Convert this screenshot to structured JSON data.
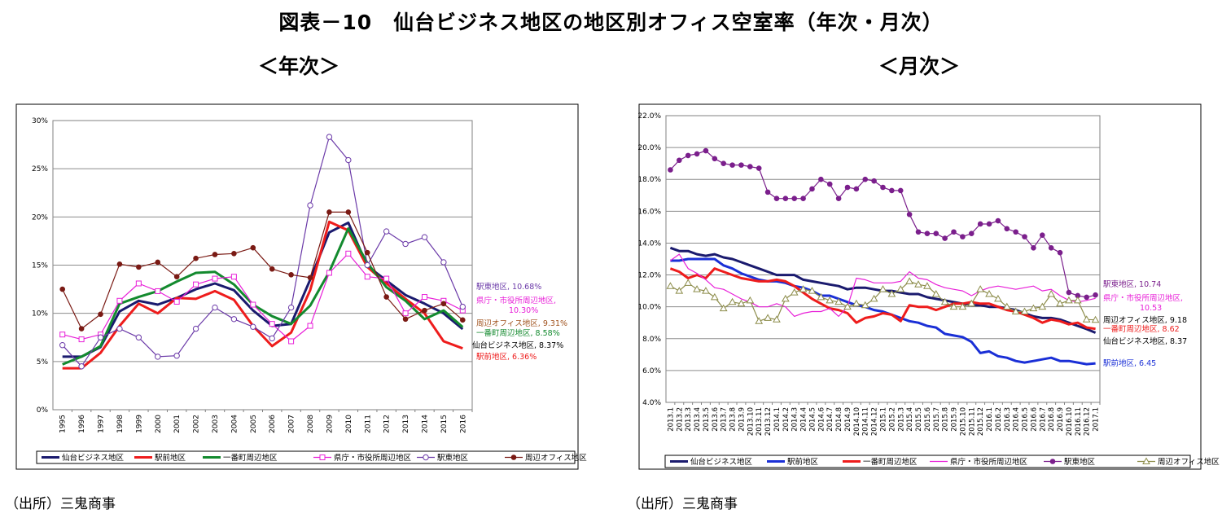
{
  "page": {
    "title": "図表－10　仙台ビジネス地区の地区別オフィス空室率（年次・月次）",
    "subtitle_left": "＜年次＞",
    "subtitle_right": "＜月次＞",
    "source_left": "（出所）三鬼商事",
    "source_right": "（出所）三鬼商事"
  },
  "chart_data": [
    {
      "type": "line",
      "x": [
        "1995",
        "1996",
        "1997",
        "1998",
        "1999",
        "2000",
        "2001",
        "2002",
        "2003",
        "2004",
        "2005",
        "2006",
        "2007",
        "2008",
        "2009",
        "2010",
        "2011",
        "2012",
        "2013",
        "2014",
        "2015",
        "2016"
      ],
      "ylim": [
        0,
        30
      ],
      "yticks": [
        0,
        5,
        10,
        15,
        20,
        25,
        30
      ],
      "ytick_labels": [
        "0%",
        "5%",
        "10%",
        "15%",
        "20%",
        "25%",
        "30%"
      ],
      "grid": true,
      "legend_position": "bottom",
      "series": [
        {
          "name": "仙台ビジネス地区",
          "color": "#1a1a6e",
          "marker": "none",
          "width": 3,
          "values": [
            5.5,
            5.5,
            6.5,
            10.2,
            11.3,
            10.9,
            11.6,
            12.5,
            13.1,
            12.4,
            10.3,
            8.7,
            8.9,
            13.5,
            18.4,
            19.4,
            14.9,
            13.4,
            11.9,
            11.0,
            10.0,
            8.37
          ],
          "end_label": "仙台ビジネス地区, 8.37%",
          "end_label_color": "#000000"
        },
        {
          "name": "駅前地区",
          "color": "#ee1c1c",
          "marker": "none",
          "width": 3,
          "values": [
            4.3,
            4.3,
            5.9,
            8.7,
            11.0,
            10.0,
            11.6,
            11.5,
            12.3,
            11.4,
            8.7,
            6.6,
            8.0,
            12.4,
            19.5,
            18.6,
            14.8,
            13.1,
            11.5,
            10.0,
            7.1,
            6.36
          ],
          "end_label": "駅前地区, 6.36%",
          "end_label_color": "#ee1c1c"
        },
        {
          "name": "一番町周辺地区",
          "color": "#138a2e",
          "marker": "none",
          "width": 3,
          "values": [
            4.7,
            5.5,
            6.6,
            11.0,
            11.7,
            12.3,
            13.3,
            14.2,
            14.3,
            13.0,
            10.9,
            9.7,
            8.9,
            10.8,
            14.3,
            18.8,
            15.2,
            12.7,
            11.3,
            9.4,
            10.3,
            8.58
          ],
          "end_label": "一番町周辺地区, 8.58%",
          "end_label_color": "#138a2e"
        },
        {
          "name": "県庁・市役所周辺地区",
          "color": "#e81fd8",
          "marker": "square",
          "width": 1.2,
          "values": [
            7.8,
            7.3,
            7.8,
            11.3,
            13.1,
            12.3,
            11.2,
            13.0,
            13.6,
            13.8,
            10.9,
            8.9,
            7.1,
            8.7,
            14.2,
            16.2,
            13.8,
            13.6,
            10.0,
            11.7,
            11.3,
            10.3
          ],
          "end_label": "県庁・市役所周辺地区, 10.30%",
          "end_label_color": "#e81fd8"
        },
        {
          "name": "駅東地区",
          "color": "#6b3aa8",
          "marker": "circle",
          "width": 1.2,
          "values": [
            6.7,
            4.5,
            7.5,
            8.4,
            7.5,
            5.5,
            5.6,
            8.4,
            10.6,
            9.4,
            8.6,
            7.4,
            10.6,
            21.2,
            28.3,
            25.9,
            15.0,
            18.5,
            17.2,
            17.9,
            15.3,
            10.68
          ],
          "end_label": "駅東地区, 10.68%",
          "end_label_color": "#6b3aa8"
        },
        {
          "name": "周辺オフィス地区",
          "color": "#7a1a14",
          "marker": "dot",
          "width": 1.2,
          "values": [
            12.5,
            8.4,
            9.9,
            15.1,
            14.8,
            15.3,
            13.8,
            15.7,
            16.1,
            16.2,
            16.8,
            14.6,
            14.0,
            13.7,
            20.5,
            20.5,
            16.3,
            11.7,
            9.4,
            10.3,
            11.0,
            9.31
          ],
          "end_label": "周辺オフィス地区, 9.31%",
          "end_label_color": "#a0521d"
        }
      ]
    },
    {
      "type": "line",
      "x": [
        "2013.1",
        "2013.2",
        "2013.3",
        "2013.4",
        "2013.5",
        "2013.6",
        "2013.7",
        "2013.8",
        "2013.9",
        "2013.10",
        "2013.11",
        "2013.12",
        "2014.1",
        "2014.2",
        "2014.3",
        "2014.4",
        "2014.5",
        "2014.6",
        "2014.7",
        "2014.8",
        "2014.9",
        "2014.10",
        "2014.11",
        "2014.12",
        "2015.1",
        "2015.2",
        "2015.3",
        "2015.4",
        "2015.5",
        "2015.6",
        "2015.7",
        "2015.8",
        "2015.9",
        "2015.10",
        "2015.11",
        "2015.12",
        "2016.1",
        "2016.2",
        "2016.3",
        "2016.4",
        "2016.5",
        "2016.6",
        "2016.7",
        "2016.8",
        "2016.9",
        "2016.10",
        "2016.11",
        "2016.12",
        "2017.1"
      ],
      "ylim": [
        4,
        22
      ],
      "yticks": [
        4,
        6,
        8,
        10,
        12,
        14,
        16,
        18,
        20,
        22
      ],
      "ytick_labels": [
        "4.0%",
        "6.0%",
        "8.0%",
        "10.0%",
        "12.0%",
        "14.0%",
        "16.0%",
        "18.0%",
        "20.0%",
        "22.0%"
      ],
      "grid": true,
      "legend_position": "bottom",
      "series": [
        {
          "name": "仙台ビジネス地区",
          "color": "#1a1a6e",
          "marker": "none",
          "width": 3,
          "values": [
            13.7,
            13.5,
            13.5,
            13.3,
            13.2,
            13.3,
            13.1,
            13.0,
            12.8,
            12.6,
            12.4,
            12.2,
            12.0,
            12.0,
            12.0,
            11.7,
            11.6,
            11.5,
            11.4,
            11.3,
            11.1,
            11.2,
            11.2,
            11.1,
            11.0,
            11.0,
            10.9,
            10.8,
            10.8,
            10.6,
            10.5,
            10.4,
            10.3,
            10.2,
            10.1,
            10.1,
            10.0,
            10.0,
            9.9,
            9.8,
            9.6,
            9.4,
            9.3,
            9.3,
            9.2,
            9.0,
            8.8,
            8.6,
            8.37
          ],
          "end_label": "仙台ビジネス地区, 8.37",
          "end_label_color": "#000000"
        },
        {
          "name": "駅前地区",
          "color": "#1a2fd6",
          "marker": "none",
          "width": 3,
          "values": [
            12.9,
            12.9,
            13.0,
            13.0,
            13.0,
            13.0,
            12.6,
            12.4,
            12.1,
            11.9,
            11.7,
            11.6,
            11.6,
            11.5,
            11.3,
            11.2,
            11.0,
            10.7,
            10.7,
            10.5,
            10.3,
            10.1,
            10.0,
            9.8,
            9.7,
            9.5,
            9.3,
            9.1,
            9.0,
            8.8,
            8.7,
            8.3,
            8.2,
            8.1,
            7.8,
            7.1,
            7.2,
            6.9,
            6.8,
            6.6,
            6.5,
            6.6,
            6.7,
            6.8,
            6.6,
            6.6,
            6.5,
            6.4,
            6.45
          ],
          "end_label": "駅前地区, 6.45",
          "end_label_color": "#1a2fd6"
        },
        {
          "name": "一番町周辺地区",
          "color": "#ee1c1c",
          "marker": "none",
          "width": 3,
          "values": [
            12.4,
            12.2,
            11.8,
            12.0,
            11.8,
            12.4,
            12.2,
            12.0,
            11.8,
            11.7,
            11.6,
            11.6,
            11.7,
            11.6,
            11.3,
            10.9,
            10.5,
            10.2,
            9.9,
            9.8,
            9.6,
            9.0,
            9.3,
            9.4,
            9.6,
            9.5,
            9.1,
            10.1,
            10.0,
            10.0,
            9.8,
            10.0,
            10.2,
            10.2,
            10.3,
            10.2,
            10.2,
            10.0,
            9.8,
            9.7,
            9.5,
            9.3,
            9.0,
            9.2,
            9.1,
            8.9,
            9.0,
            8.7,
            8.62
          ],
          "end_label": "一番町周辺地区, 8.62",
          "end_label_color": "#ee1c1c"
        },
        {
          "name": "県庁・市役所周辺地区",
          "color": "#e81fd8",
          "marker": "none",
          "width": 1.2,
          "values": [
            12.9,
            13.3,
            12.4,
            12.1,
            11.7,
            11.2,
            11.1,
            10.8,
            10.5,
            10.3,
            10.0,
            10.0,
            10.2,
            10.0,
            9.4,
            9.6,
            9.7,
            9.7,
            9.9,
            9.4,
            10.0,
            11.8,
            11.7,
            11.5,
            11.5,
            11.5,
            11.6,
            12.2,
            11.8,
            11.7,
            11.4,
            11.2,
            11.1,
            11.0,
            10.7,
            11.0,
            11.2,
            11.3,
            11.2,
            11.1,
            11.2,
            11.3,
            11.0,
            11.1,
            10.7,
            10.4,
            10.3,
            10.4,
            10.53
          ],
          "end_label": "県庁・市役所周辺地区, 10.53",
          "end_label_color": "#e81fd8"
        },
        {
          "name": "駅東地区",
          "color": "#7b1f8c",
          "marker": "dot",
          "width": 1.2,
          "values": [
            18.6,
            19.2,
            19.5,
            19.6,
            19.8,
            19.3,
            19.0,
            18.9,
            18.9,
            18.8,
            18.7,
            17.2,
            16.8,
            16.8,
            16.8,
            16.8,
            17.4,
            18.0,
            17.7,
            16.8,
            17.5,
            17.4,
            18.0,
            17.9,
            17.5,
            17.3,
            17.3,
            15.8,
            14.7,
            14.6,
            14.6,
            14.3,
            14.7,
            14.4,
            14.6,
            15.2,
            15.2,
            15.4,
            14.9,
            14.7,
            14.4,
            13.7,
            14.5,
            13.7,
            13.4,
            10.9,
            10.7,
            10.6,
            10.74
          ],
          "end_label": "駅東地区, 10.74",
          "end_label_color": "#7b1f8c"
        },
        {
          "name": "周辺オフィス地区",
          "color": "#8c8c4a",
          "marker": "triangle",
          "width": 1.2,
          "values": [
            11.3,
            11.0,
            11.5,
            11.1,
            11.0,
            10.6,
            9.9,
            10.3,
            10.2,
            10.4,
            9.1,
            9.3,
            9.2,
            10.5,
            10.9,
            11.1,
            11.0,
            10.6,
            10.4,
            10.3,
            10.0,
            10.2,
            10.1,
            10.5,
            11.1,
            10.8,
            11.1,
            11.6,
            11.4,
            11.3,
            10.8,
            10.3,
            10.0,
            10.0,
            10.2,
            11.1,
            10.8,
            10.5,
            10.0,
            9.7,
            9.7,
            9.9,
            10.0,
            10.8,
            10.2,
            10.4,
            10.4,
            9.2,
            9.18
          ],
          "end_label": "周辺オフィス地区, 9.18",
          "end_label_color": "#000000"
        }
      ]
    }
  ]
}
